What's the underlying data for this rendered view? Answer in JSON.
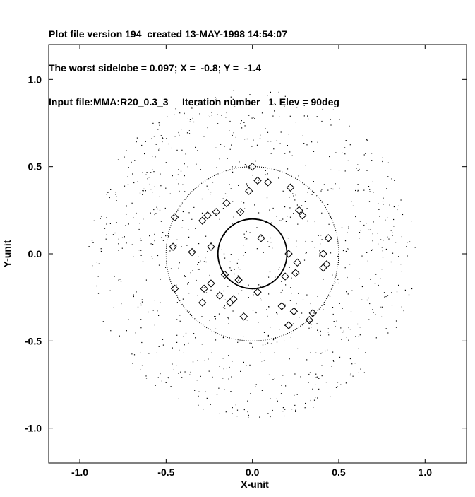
{
  "header": {
    "line1": "Plot file version 194  created 13-MAY-1998 14:54:07",
    "line2": "The worst sidelobe = 0.097; X =  -0.8; Y =  -1.4",
    "line3": "Input file:MMA:R20_0.3_3     Iteration number   1. Elev = 90deg"
  },
  "chart_data": {
    "type": "scatter",
    "title": "",
    "xlabel": "X-unit",
    "ylabel": "Y-unit",
    "xlim": [
      -1.18,
      1.24
    ],
    "ylim": [
      -1.2,
      1.2
    ],
    "x_ticks": [
      -1.0,
      -0.5,
      0.0,
      0.5,
      1.0
    ],
    "x_tick_labels": [
      "-1.0",
      "-0.5",
      "0.0",
      "0.5",
      "1.0"
    ],
    "y_ticks": [
      -1.0,
      -0.5,
      0.0,
      0.5,
      1.0
    ],
    "y_tick_labels": [
      "-1.0",
      "-0.5",
      "0.0",
      "0.5",
      "1.0"
    ],
    "grid": false,
    "circles": [
      {
        "name": "inner",
        "center": [
          0.0,
          0.0
        ],
        "radius": 0.2,
        "style": "solid"
      },
      {
        "name": "outer",
        "center": [
          0.0,
          0.0
        ],
        "radius": 0.5,
        "style": "dotted"
      }
    ],
    "dot_field": {
      "min_radius": 0.0,
      "max_radius": 0.95,
      "count": 1000
    },
    "diamond_series": {
      "x": [
        0.0,
        0.03,
        0.09,
        0.22,
        -0.02,
        -0.07,
        -0.15,
        -0.21,
        -0.26,
        -0.29,
        -0.45,
        -0.35,
        -0.24,
        -0.46,
        -0.28,
        -0.24,
        -0.19,
        -0.11,
        -0.16,
        -0.08,
        -0.05,
        -0.13,
        -0.29,
        0.03,
        0.17,
        0.21,
        0.24,
        0.25,
        0.27,
        0.29,
        0.43,
        0.41,
        0.44,
        0.41,
        0.35,
        0.33,
        0.26,
        0.21,
        0.19,
        0.05,
        -0.45
      ],
      "y": [
        0.5,
        0.42,
        0.41,
        0.38,
        0.36,
        0.24,
        0.29,
        0.24,
        0.22,
        0.19,
        0.21,
        0.01,
        0.04,
        0.04,
        -0.2,
        -0.17,
        -0.24,
        -0.26,
        -0.12,
        -0.15,
        -0.36,
        -0.28,
        -0.28,
        -0.22,
        -0.3,
        -0.41,
        -0.33,
        -0.11,
        0.25,
        0.22,
        -0.06,
        -0.08,
        0.09,
        0.0,
        -0.34,
        -0.38,
        -0.05,
        0.0,
        -0.13,
        0.09,
        -0.2
      ]
    }
  }
}
